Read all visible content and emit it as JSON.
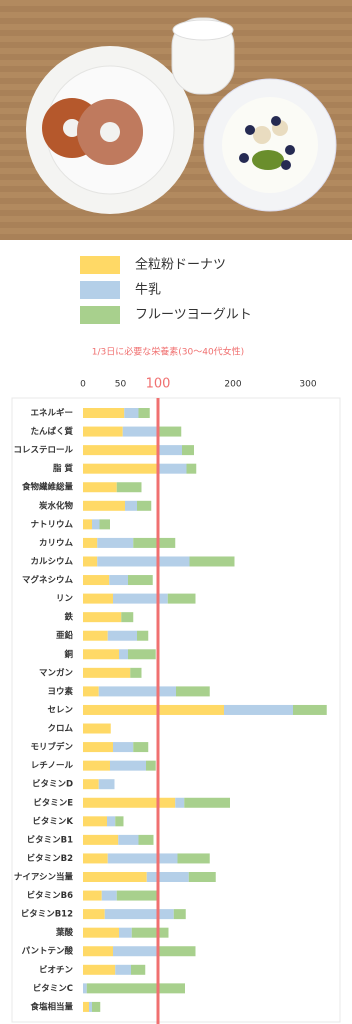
{
  "chart_data": {
    "type": "stacked-barh",
    "title": "1/3日に必要な栄養素(30～40代女性)",
    "categories": [
      "エネルギー",
      "たんぱく質",
      "コレステロール",
      "脂 質",
      "食物繊維総量",
      "炭水化物",
      "ナトリウム",
      "カリウム",
      "カルシウム",
      "マグネシウム",
      "リン",
      "鉄",
      "亜鉛",
      "銅",
      "マンガン",
      "ヨウ素",
      "セレン",
      "クロム",
      "モリブデン",
      "レチノール",
      "ビタミンD",
      "ビタミンE",
      "ビタミンK",
      "ビタミンB1",
      "ビタミンB2",
      "ナイアシン当量",
      "ビタミンB6",
      "ビタミンB12",
      "葉酸",
      "パントテン酸",
      "ビオチン",
      "ビタミンC",
      "食塩相当量"
    ],
    "series": [
      {
        "name": "全粒粉ドーナツ",
        "color": "#ffd966",
        "values": [
          55,
          53,
          99,
          99,
          45,
          56,
          12,
          19,
          19,
          35,
          40,
          51,
          33,
          48,
          63,
          21,
          188,
          37,
          40,
          36,
          21,
          123,
          32,
          47,
          33,
          85,
          25,
          29,
          48,
          40,
          43,
          0,
          8
        ]
      },
      {
        "name": "牛乳",
        "color": "#b4cfe8",
        "values": [
          19,
          45,
          33,
          39,
          0,
          16,
          10,
          48,
          123,
          25,
          73,
          0,
          39,
          12,
          0,
          103,
          92,
          0,
          27,
          48,
          21,
          12,
          11,
          27,
          93,
          56,
          20,
          92,
          17,
          61,
          21,
          5,
          4
        ]
      },
      {
        "name": "フルーツヨーグルト",
        "color": "#a8d08d",
        "values": [
          15,
          33,
          16,
          13,
          33,
          19,
          14,
          56,
          60,
          33,
          37,
          16,
          15,
          37,
          15,
          45,
          45,
          0,
          20,
          13,
          0,
          61,
          11,
          20,
          43,
          36,
          57,
          16,
          49,
          49,
          19,
          131,
          11
        ]
      }
    ],
    "xlim": [
      0,
      330
    ],
    "xticks": [
      0,
      50,
      100,
      200,
      300
    ],
    "reference_line": {
      "value": 100,
      "color": "#f07070"
    }
  }
}
